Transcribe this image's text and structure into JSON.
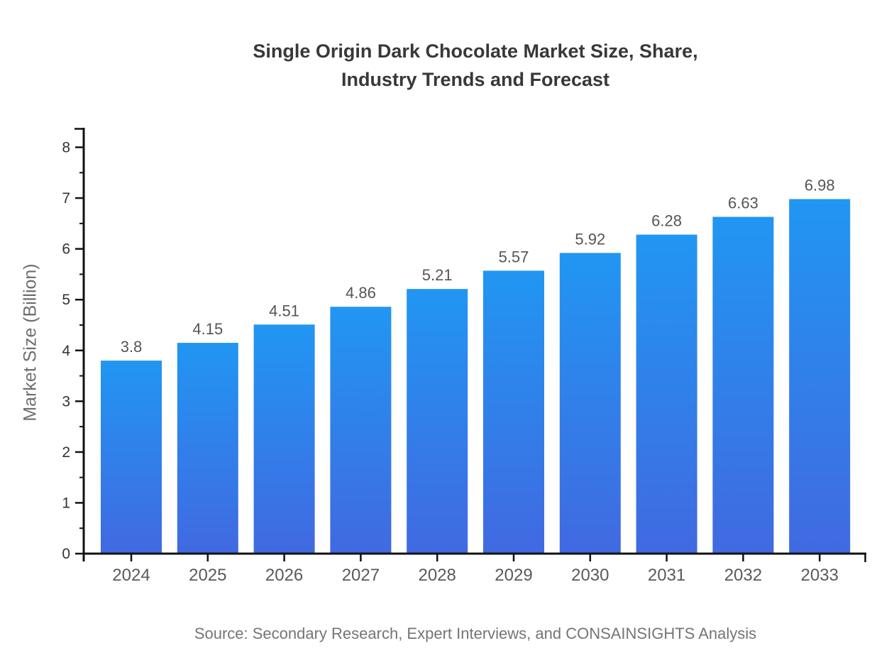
{
  "chart_data": {
    "type": "bar",
    "title": "Single Origin Dark Chocolate Market Size, Share, Industry Trends and Forecast",
    "title_lines": [
      "Single Origin Dark Chocolate Market Size, Share,",
      "Industry Trends and Forecast"
    ],
    "categories": [
      "2024",
      "2025",
      "2026",
      "2027",
      "2028",
      "2029",
      "2030",
      "2031",
      "2032",
      "2033"
    ],
    "values": [
      3.8,
      4.15,
      4.51,
      4.86,
      5.21,
      5.57,
      5.92,
      6.28,
      6.63,
      6.98
    ],
    "data_labels": [
      "3.8",
      "4.15",
      "4.51",
      "4.86",
      "5.21",
      "5.57",
      "5.92",
      "6.28",
      "6.63",
      "6.98"
    ],
    "xlabel": "",
    "ylabel": "Market Size (Billion)",
    "ylim": [
      0,
      8
    ],
    "ytick_step": 1,
    "ytick_minor_step": 0.5,
    "yticks": [
      "0",
      "1",
      "2",
      "3",
      "4",
      "5",
      "6",
      "7",
      "8"
    ],
    "grid": "off",
    "legend": "none",
    "source": "Source: Secondary Research, Expert Interviews, and CONSAINSIGHTS Analysis",
    "colors": {
      "bar_gradient_top": "#2196f3",
      "bar_gradient_bottom": "#4169e1",
      "axis": "#111111",
      "title_text": "#383838",
      "ytick_text": "#333333",
      "xtick_text": "#5a5a5a",
      "data_label_text": "#555555",
      "axis_label_text": "#6e6e6e",
      "source_text": "#757575",
      "background": "#ffffff"
    }
  }
}
